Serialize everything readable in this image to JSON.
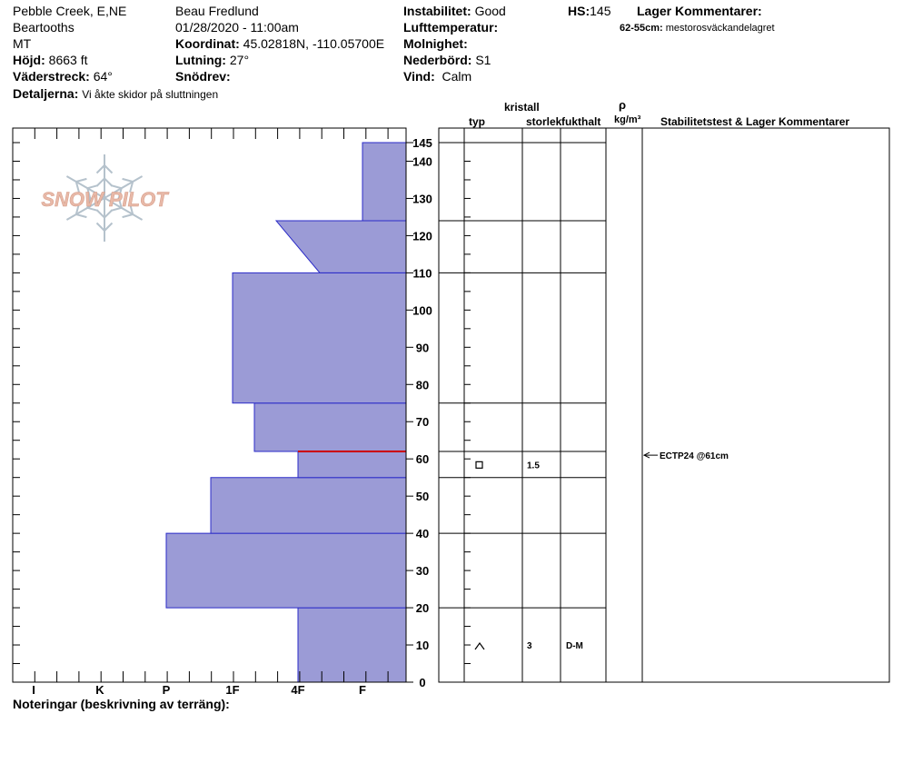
{
  "header": {
    "location": "Pebble Creek, E,NE",
    "range": "Beartooths",
    "state": "MT",
    "elevation_label": "Höjd:",
    "elevation_value": "8663 ft",
    "aspect_label": "Väderstreck:",
    "aspect_value": "64°",
    "details_label": "Detaljerna:",
    "details_value": "Vi åkte skidor på sluttningen",
    "observer": "Beau  Fredlund",
    "datetime": "01/28/2020 - 11:00am",
    "coord_label": "Koordinat:",
    "coord_value": "45.02818N, -110.05700E",
    "slope_label": "Lutning:",
    "slope_value": "27°",
    "drift_label": "Snödrev:",
    "drift_value": "",
    "stability_label": "Instabilitet:",
    "stability_value": "Good",
    "airtemp_label": "Lufttemperatur:",
    "airtemp_value": "",
    "clouds_label": "Molnighet:",
    "clouds_value": "",
    "precip_label": "Nederbörd:",
    "precip_value": "S1",
    "wind_label": "Vind:",
    "wind_value": "Calm",
    "hs_label": "HS:",
    "hs_value": "145",
    "layer_comments_label": "Lager Kommentarer:",
    "layer_comment_range": "62-55cm:",
    "layer_comment_text": "mestorosväckandelagret"
  },
  "logo_text": "SNOW PILOT",
  "columns": {
    "type": "typ",
    "crystal": "kristall",
    "size": "storlek",
    "moisture": "fukthalt",
    "rho": "ρ",
    "density_unit": "kg/m³",
    "stability": "Stabilitetstest & Lager Kommentarer"
  },
  "footer_label": "Noteringar (beskrivning av terräng):",
  "colors": {
    "profile_fill": "#9b9bd6",
    "profile_stroke": "#2b2bc8",
    "weak_layer": "#cc0000",
    "logo_text": "#e8b9a8",
    "logo_flake": "#b5c2cc"
  },
  "chart_data": {
    "type": "area",
    "title": "",
    "hardness_scale": [
      "I",
      "K",
      "P",
      "1F",
      "4F",
      "F"
    ],
    "ylim": [
      0,
      145
    ],
    "ytick_labels": [
      "0",
      "10",
      "20",
      "30",
      "40",
      "50",
      "60",
      "70",
      "80",
      "90",
      "100",
      "110",
      "120",
      "130",
      "140",
      "145"
    ],
    "layers": [
      {
        "bottom": 0,
        "top": 20,
        "hardness_bottom": "4F",
        "hardness_top": "4F",
        "crystal": "^",
        "size": "3",
        "moisture": "D-M"
      },
      {
        "bottom": 20,
        "top": 40,
        "hardness_bottom": "P",
        "hardness_top": "P",
        "crystal": "",
        "size": "",
        "moisture": ""
      },
      {
        "bottom": 40,
        "top": 55,
        "hardness_bottom": "1F+",
        "hardness_top": "1F+",
        "crystal": "",
        "size": "",
        "moisture": ""
      },
      {
        "bottom": 55,
        "top": 62,
        "hardness_bottom": "4F",
        "hardness_top": "4F",
        "crystal": "□",
        "size": "1.5",
        "moisture": ""
      },
      {
        "bottom": 62,
        "top": 75,
        "hardness_bottom": "1F-",
        "hardness_top": "1F-",
        "crystal": "",
        "size": "",
        "moisture": ""
      },
      {
        "bottom": 75,
        "top": 110,
        "hardness_bottom": "1F",
        "hardness_top": "1F",
        "crystal": "",
        "size": "",
        "moisture": ""
      },
      {
        "bottom": 110,
        "top": 124,
        "hardness_bottom": "4F-",
        "hardness_top": "4F+",
        "crystal": "",
        "size": "",
        "moisture": ""
      },
      {
        "bottom": 124,
        "top": 145,
        "hardness_bottom": "F",
        "hardness_top": "F",
        "crystal": "",
        "size": "",
        "moisture": ""
      }
    ],
    "weak_layer_cm": 62,
    "stability_test": {
      "label": "ECTP24 @61cm",
      "depth_cm": 61
    }
  }
}
